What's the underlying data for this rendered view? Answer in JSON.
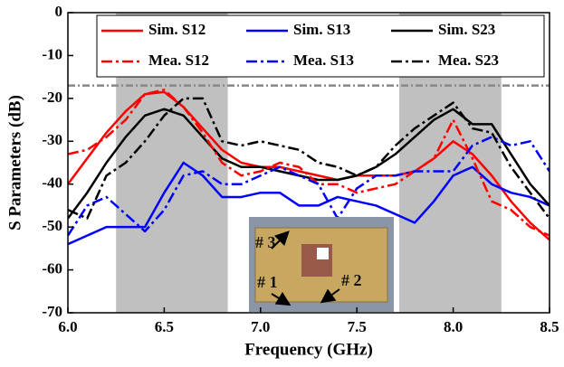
{
  "chart_data": {
    "type": "line",
    "xlabel": "Frequency (GHz)",
    "ylabel": "S Parameters (dB)",
    "xlim": [
      6.0,
      8.5
    ],
    "xticks": [
      {
        "value": 6.0,
        "label": "6.0"
      },
      {
        "value": 6.5,
        "label": "6.5"
      },
      {
        "value": 7.0,
        "label": "7.0"
      },
      {
        "value": 7.5,
        "label": "7.5"
      },
      {
        "value": 8.0,
        "label": "8.0"
      },
      {
        "value": 8.5,
        "label": "8.5"
      }
    ],
    "ylim": [
      -70,
      0
    ],
    "yticks": [
      0,
      -10,
      -20,
      -30,
      -40,
      -50,
      -60,
      -70
    ],
    "shaded_regions": [
      [
        6.25,
        6.83
      ],
      [
        7.72,
        8.25
      ]
    ],
    "shade_color": "#c0c0c0",
    "reference_line": -17,
    "annotations": [
      "# 3",
      "# 1",
      "# 2"
    ],
    "legend": "top",
    "x": [
      6.0,
      6.1,
      6.2,
      6.3,
      6.4,
      6.5,
      6.6,
      6.7,
      6.8,
      6.9,
      7.0,
      7.1,
      7.2,
      7.3,
      7.4,
      7.5,
      7.6,
      7.7,
      7.8,
      7.9,
      8.0,
      8.1,
      8.2,
      8.3,
      8.4,
      8.5
    ],
    "series": [
      {
        "name": "Sim. S12",
        "color": "#ff0000",
        "dash": "solid",
        "values": [
          -40,
          -34,
          -28,
          -23,
          -19,
          -18.5,
          -22,
          -27,
          -32,
          -35,
          -36,
          -36,
          -37,
          -38,
          -39,
          -38,
          -38,
          -38,
          -37,
          -34,
          -30,
          -33,
          -38,
          -44,
          -49,
          -53
        ]
      },
      {
        "name": "Sim. S13",
        "color": "#0000ff",
        "dash": "solid",
        "values": [
          -54,
          -52,
          -50,
          -50,
          -50,
          -42,
          -35,
          -38,
          -43,
          -43,
          -42,
          -42,
          -45,
          -45,
          -43,
          -44,
          -45,
          -47,
          -49,
          -44,
          -38,
          -36,
          -40,
          -42,
          -43,
          -45
        ]
      },
      {
        "name": "Sim. S23",
        "color": "#000000",
        "dash": "solid",
        "values": [
          -48,
          -42,
          -35,
          -29,
          -24,
          -22.5,
          -24,
          -29,
          -34,
          -36,
          -36,
          -37,
          -38,
          -39,
          -39,
          -38,
          -36,
          -33,
          -29,
          -25,
          -22.5,
          -26,
          -26,
          -33,
          -40,
          -45
        ]
      },
      {
        "name": "Mea. S12",
        "color": "#ff0000",
        "dash": "dashdot",
        "values": [
          -33,
          -32,
          -29,
          -25,
          -19,
          -18,
          -22,
          -28,
          -35,
          -38,
          -37,
          -35,
          -36,
          -40,
          -40,
          -42,
          -41,
          -40,
          -37,
          -34,
          -25,
          -34,
          -44,
          -46,
          -50,
          -52
        ]
      },
      {
        "name": "Mea. S13",
        "color": "#0000ff",
        "dash": "dashdot",
        "values": [
          -52,
          -45,
          -43,
          -47,
          -51,
          -46,
          -38,
          -37,
          -40,
          -40,
          -38,
          -36,
          -38,
          -40,
          -48,
          -41,
          -38,
          -38,
          -37,
          -37,
          -37,
          -31,
          -29,
          -31,
          -30,
          -37
        ]
      },
      {
        "name": "Mea. S23",
        "color": "#000000",
        "dash": "dashdot",
        "values": [
          -46,
          -48,
          -38,
          -35,
          -30,
          -24,
          -20,
          -20,
          -30,
          -31,
          -30,
          -31,
          -32,
          -35,
          -36,
          -38,
          -36,
          -31,
          -27,
          -24,
          -21,
          -27,
          -28,
          -36,
          -42,
          -48
        ]
      }
    ]
  }
}
